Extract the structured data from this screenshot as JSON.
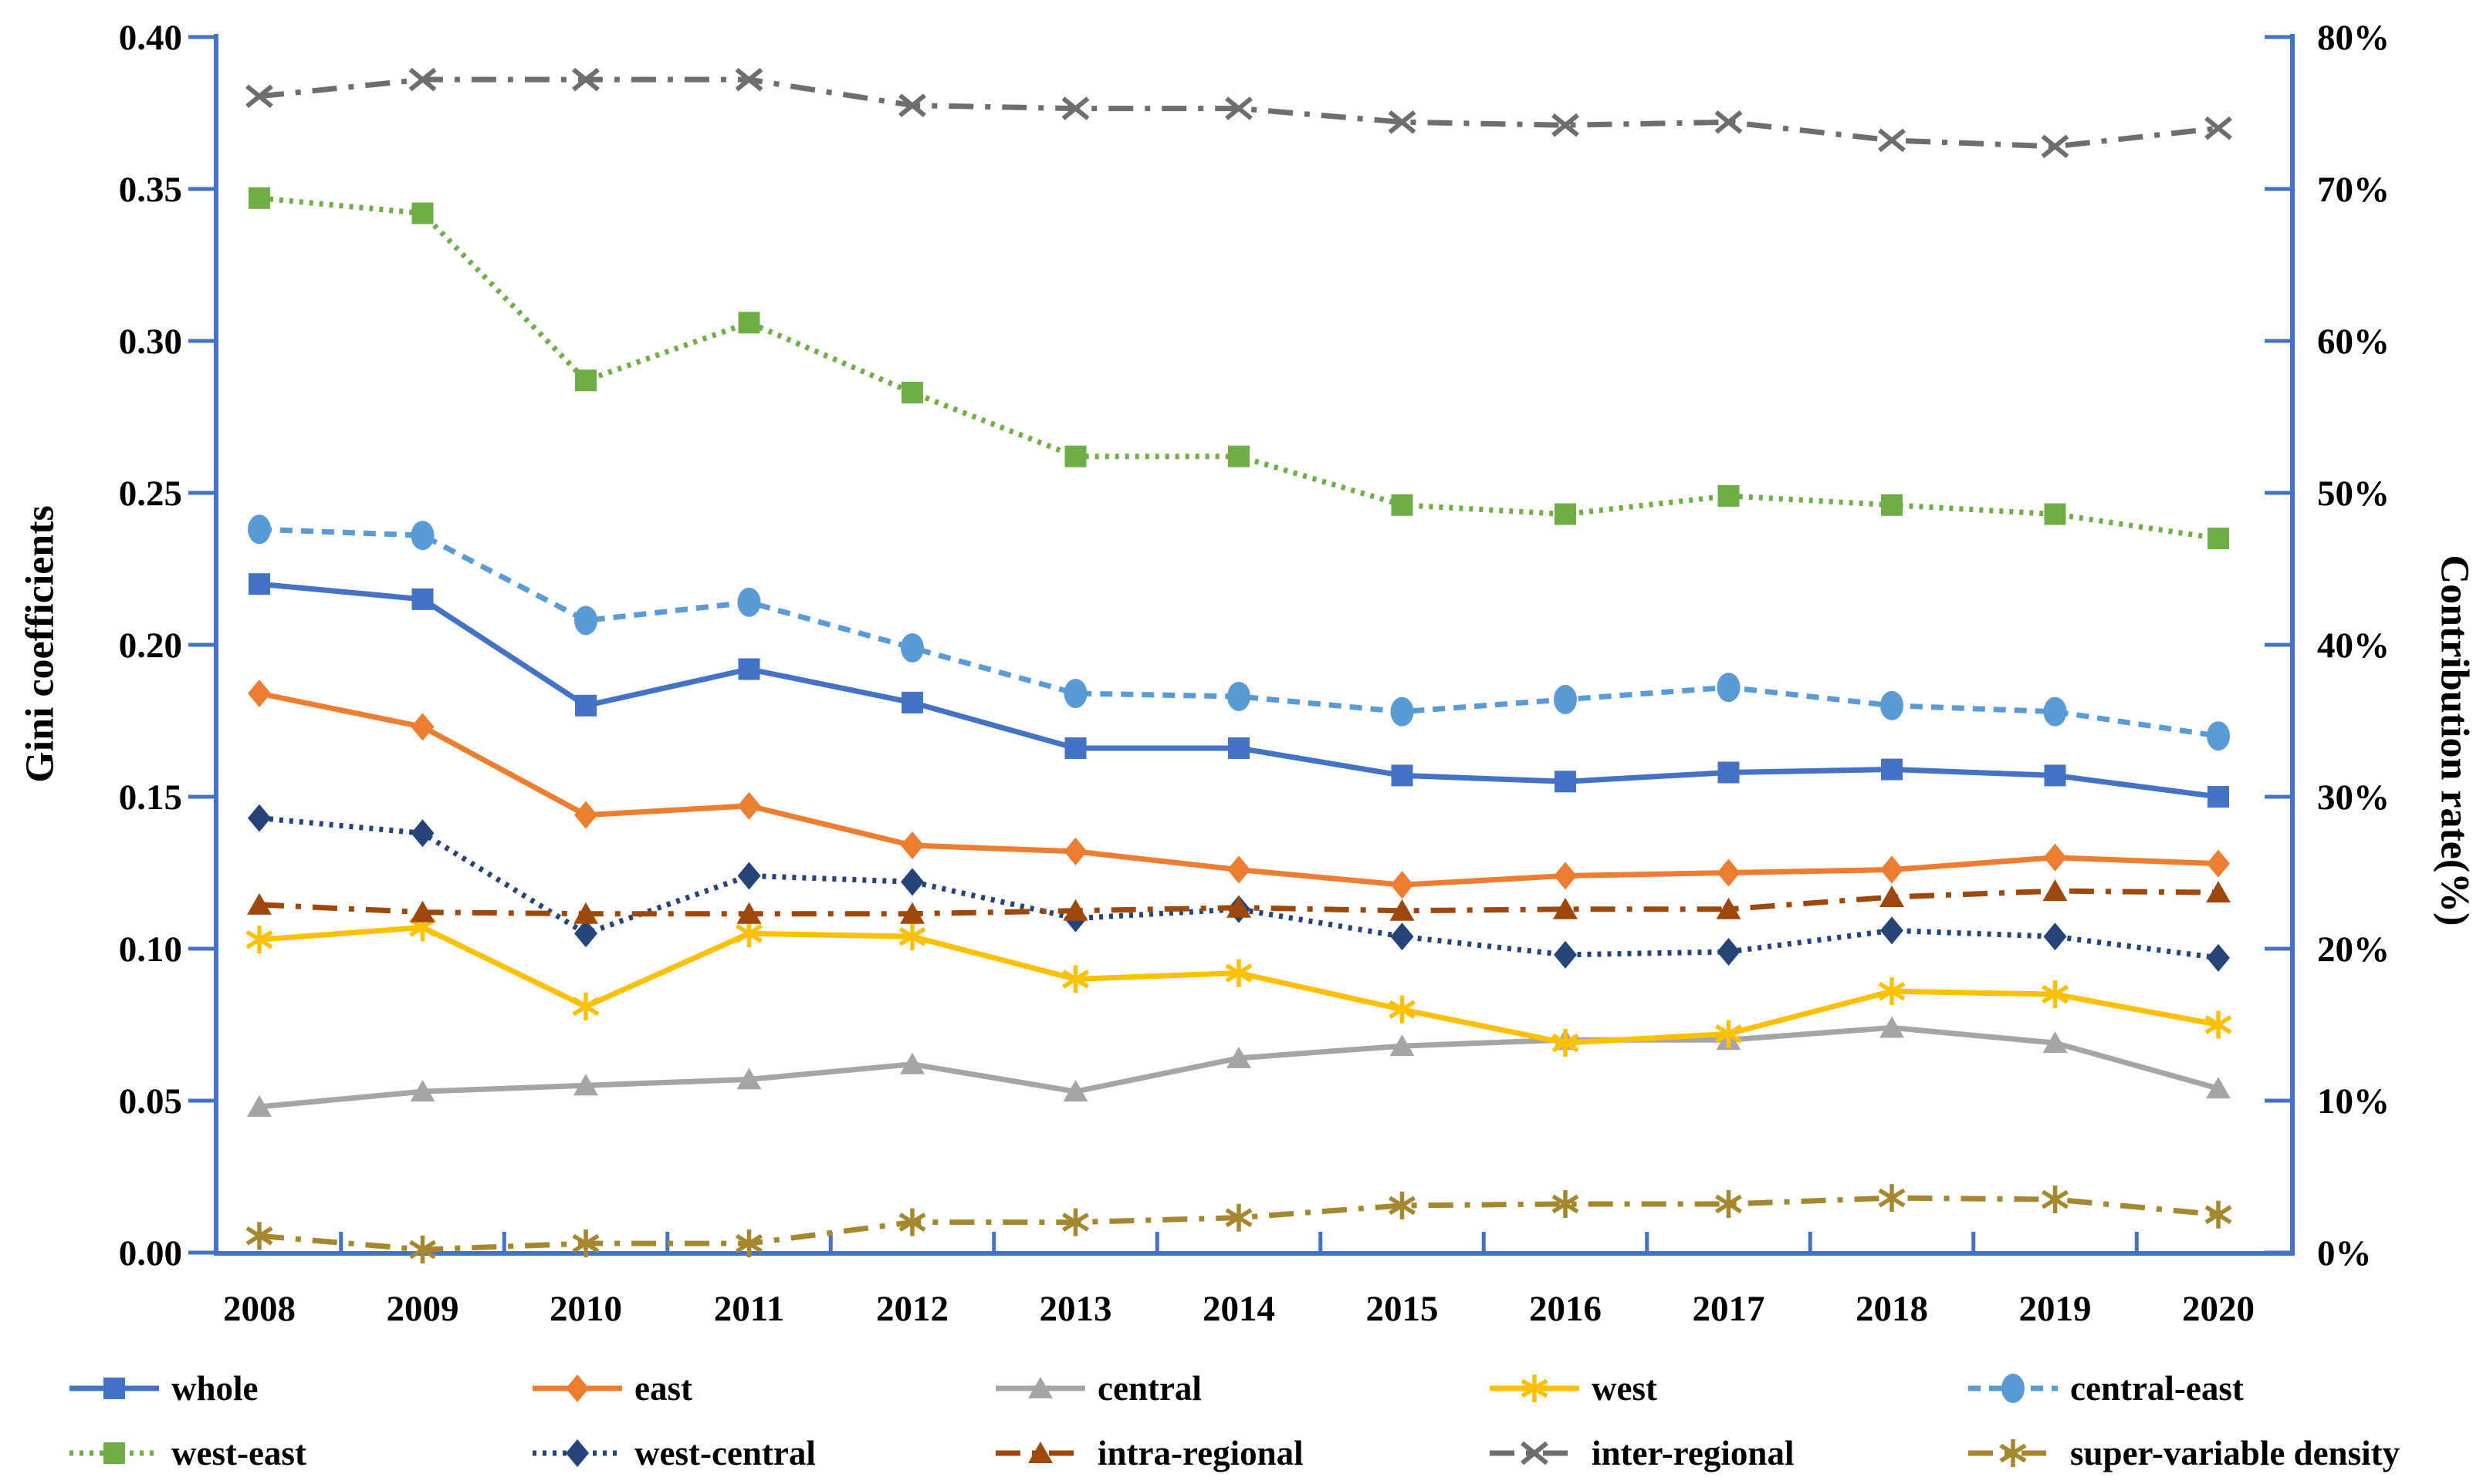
{
  "chart_data": {
    "type": "line",
    "title": "",
    "categories": [
      "2008",
      "2009",
      "2010",
      "2011",
      "2012",
      "2013",
      "2014",
      "2015",
      "2016",
      "2017",
      "2018",
      "2019",
      "2020"
    ],
    "left_axis": {
      "label": "Gini coefficients",
      "min": 0.0,
      "max": 0.4,
      "tick_labels": [
        "0.00",
        "0.05",
        "0.10",
        "0.15",
        "0.20",
        "0.25",
        "0.30",
        "0.35",
        "0.40"
      ]
    },
    "right_axis": {
      "label": "Contribution rate(%)",
      "min": 0,
      "max": 80,
      "tick_labels": [
        "0%",
        "10%",
        "20%",
        "30%",
        "40%",
        "50%",
        "60%",
        "70%",
        "80%"
      ]
    },
    "axis_color": "#4472C4",
    "grid": false,
    "legend_position": "bottom",
    "series": [
      {
        "name": "whole",
        "axis": "left",
        "color": "#4472C4",
        "marker": "square",
        "dash": "solid",
        "values": [
          0.22,
          0.215,
          0.18,
          0.192,
          0.181,
          0.166,
          0.166,
          0.157,
          0.155,
          0.158,
          0.159,
          0.157,
          0.15
        ]
      },
      {
        "name": "east",
        "axis": "left",
        "color": "#ED7D31",
        "marker": "diamond",
        "dash": "solid",
        "values": [
          0.184,
          0.173,
          0.144,
          0.147,
          0.134,
          0.132,
          0.126,
          0.121,
          0.124,
          0.125,
          0.126,
          0.13,
          0.128
        ]
      },
      {
        "name": "central",
        "axis": "left",
        "color": "#A5A5A5",
        "marker": "triangle",
        "dash": "solid",
        "values": [
          0.048,
          0.053,
          0.055,
          0.057,
          0.062,
          0.053,
          0.064,
          0.068,
          0.07,
          0.07,
          0.074,
          0.069,
          0.054
        ]
      },
      {
        "name": "west",
        "axis": "left",
        "color": "#FFC000",
        "marker": "asterisk",
        "dash": "solid",
        "values": [
          0.103,
          0.107,
          0.081,
          0.105,
          0.104,
          0.09,
          0.092,
          0.08,
          0.069,
          0.072,
          0.086,
          0.085,
          0.075
        ]
      },
      {
        "name": "central-east",
        "axis": "left",
        "color": "#5B9BD5",
        "marker": "circle",
        "dash": "dashed",
        "values": [
          0.238,
          0.236,
          0.208,
          0.214,
          0.199,
          0.184,
          0.183,
          0.178,
          0.182,
          0.186,
          0.18,
          0.178,
          0.17
        ]
      },
      {
        "name": "west-east",
        "axis": "left",
        "color": "#70AD47",
        "marker": "square",
        "dash": "dotted",
        "values": [
          0.347,
          0.342,
          0.287,
          0.306,
          0.283,
          0.262,
          0.262,
          0.246,
          0.243,
          0.249,
          0.246,
          0.243,
          0.235
        ]
      },
      {
        "name": "west-central",
        "axis": "left",
        "color": "#264478",
        "marker": "diamond",
        "dash": "dotted",
        "values": [
          0.143,
          0.138,
          0.105,
          0.124,
          0.122,
          0.11,
          0.113,
          0.104,
          0.098,
          0.099,
          0.106,
          0.104,
          0.097
        ]
      },
      {
        "name": "intra-regional",
        "axis": "right",
        "color": "#9E480E",
        "marker": "triangle",
        "dash": "dashdot",
        "values": [
          22.9,
          22.4,
          22.3,
          22.3,
          22.3,
          22.5,
          22.7,
          22.5,
          22.6,
          22.6,
          23.4,
          23.8,
          23.7
        ]
      },
      {
        "name": "inter-regional",
        "axis": "right",
        "color": "#6E6E6E",
        "marker": "x",
        "dash": "dashdot",
        "values": [
          76.1,
          77.2,
          77.2,
          77.2,
          75.5,
          75.3,
          75.3,
          74.4,
          74.2,
          74.4,
          73.2,
          72.8,
          74.0
        ]
      },
      {
        "name": "super-variable density",
        "axis": "right",
        "color": "#A4872E",
        "marker": "asterisk",
        "dash": "dashdot",
        "values": [
          1.1,
          0.2,
          0.6,
          0.6,
          2.0,
          2.0,
          2.3,
          3.1,
          3.2,
          3.2,
          3.6,
          3.5,
          2.5
        ]
      }
    ]
  }
}
